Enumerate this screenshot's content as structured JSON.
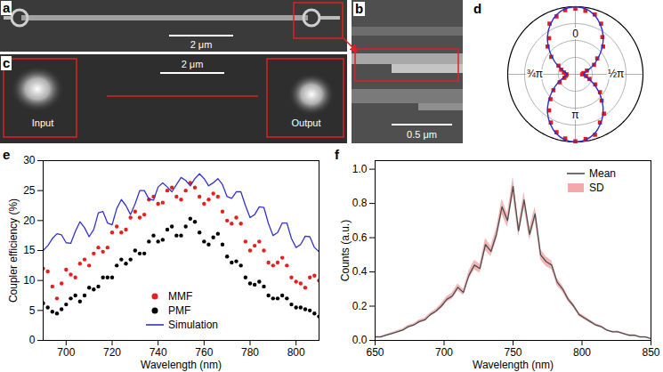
{
  "images": [
    {
      "panel": "a",
      "scale_bar": "2 μm"
    },
    {
      "panel": "b",
      "scale_bar": "0.5 μm"
    },
    {
      "panel": "c",
      "scale_bar": "2 μm",
      "labels": [
        "Input",
        "Output"
      ]
    }
  ],
  "chart_data": [
    {
      "panel": "d",
      "type": "polar",
      "grid": true,
      "tick_labels": "x",
      "x": [
        0,
        0.05,
        0.1,
        0.15,
        0.2,
        0.25,
        0.3,
        0.35,
        0.4,
        0.45,
        0.5,
        0.55,
        0.6,
        0.65,
        0.7,
        0.75,
        0.8,
        0.85,
        0.9,
        0.95,
        1,
        1.05,
        1.1,
        1.15,
        1.2,
        1.25,
        1.3,
        1.35,
        1.4,
        1.45,
        1.5,
        1.55,
        1.6,
        1.65,
        1.7,
        1.75,
        1.8,
        1.85,
        1.9,
        1.95
      ],
      "xlim": [
        0,
        2
      ],
      "xticks": [
        {
          "value": 0,
          "label": "0"
        },
        {
          "value": 0.5,
          "label": "½π"
        },
        {
          "value": 1,
          "label": "π"
        },
        {
          "value": 1.5,
          "label": "¾π"
        }
      ],
      "ylim": [
        0,
        1
      ],
      "yticks": [
        0.25,
        0.5,
        0.75
      ],
      "series": [
        {
          "type": "scatter",
          "marker": "square",
          "color": "#e41a1c",
          "values": [
            0.97,
            0.95,
            0.93,
            0.84,
            0.68,
            0.58,
            0.4,
            0.31,
            0.18,
            0.12,
            0.1,
            0.16,
            0.22,
            0.33,
            0.45,
            0.55,
            0.72,
            0.8,
            0.94,
            0.97,
            0.99,
            0.96,
            0.9,
            0.8,
            0.66,
            0.52,
            0.4,
            0.26,
            0.17,
            0.14,
            0.13,
            0.17,
            0.22,
            0.28,
            0.44,
            0.58,
            0.66,
            0.84,
            0.9,
            0.96
          ]
        },
        {
          "type": "line",
          "color": "#2b2bd9",
          "values": [
            1,
            0.98,
            0.92,
            0.82,
            0.7,
            0.56,
            0.42,
            0.3,
            0.2,
            0.14,
            0.12,
            0.14,
            0.2,
            0.3,
            0.42,
            0.56,
            0.7,
            0.82,
            0.92,
            0.98,
            1,
            0.98,
            0.92,
            0.82,
            0.7,
            0.56,
            0.42,
            0.3,
            0.2,
            0.14,
            0.12,
            0.14,
            0.2,
            0.3,
            0.42,
            0.56,
            0.7,
            0.82,
            0.92,
            0.98
          ]
        }
      ]
    },
    {
      "panel": "e",
      "type": "line",
      "legend": "lower center",
      "xlabel": "Wavelength (nm)",
      "ylabel": "Coupler efficiency (%)",
      "xlim": [
        690,
        810
      ],
      "xticks": [
        700,
        720,
        740,
        760,
        780,
        800
      ],
      "ylim": [
        0,
        30
      ],
      "yticks": [
        0,
        5,
        10,
        15,
        20,
        25,
        30
      ],
      "x": [
        690,
        692,
        694,
        696,
        698,
        700,
        702,
        704,
        706,
        708,
        710,
        712,
        714,
        716,
        718,
        720,
        722,
        724,
        726,
        728,
        730,
        732,
        734,
        736,
        738,
        740,
        742,
        744,
        746,
        748,
        750,
        752,
        754,
        756,
        758,
        760,
        762,
        764,
        766,
        768,
        770,
        772,
        774,
        776,
        778,
        780,
        782,
        784,
        786,
        788,
        790,
        792,
        794,
        796,
        798,
        800,
        802,
        804,
        806,
        808,
        810
      ],
      "series": [
        {
          "name": "MMF",
          "type": "scatter",
          "marker": "circle",
          "color": "#e8201c",
          "values": [
            12,
            11.5,
            9,
            7,
            9.5,
            11.8,
            11,
            10.5,
            12.8,
            13.5,
            12.5,
            14.5,
            15.5,
            14.8,
            15.5,
            18,
            19,
            18,
            18.5,
            20.5,
            21.5,
            20.5,
            21,
            23.5,
            24,
            22.8,
            23,
            25,
            25.5,
            24,
            23.5,
            25,
            26.3,
            25.5,
            24,
            22.8,
            23.5,
            24.5,
            24,
            21.5,
            20,
            19.5,
            20.5,
            19.5,
            16.5,
            15,
            15.8,
            16.5,
            15,
            13,
            12.5,
            13,
            13.8,
            12.5,
            10.5,
            9.8,
            9.5,
            8.8,
            10.5,
            10.8,
            10
          ]
        },
        {
          "name": "PMF",
          "type": "scatter",
          "marker": "circle",
          "color": "#000000",
          "values": [
            6.2,
            5.5,
            4.8,
            4.5,
            5.2,
            6,
            7,
            7.5,
            6.5,
            7.5,
            8.8,
            8.5,
            9,
            10.5,
            10.5,
            10.5,
            12.5,
            13.5,
            12.8,
            13.5,
            15,
            14.5,
            14.5,
            16.5,
            17.5,
            16.5,
            16.8,
            18.5,
            19,
            17.5,
            17.5,
            19,
            20.3,
            19.8,
            18,
            16.5,
            16,
            17.2,
            17.8,
            16,
            14,
            13,
            13.2,
            12.5,
            10.5,
            9.5,
            9.3,
            9.8,
            9,
            7.5,
            7,
            7,
            7.5,
            7,
            6,
            5.5,
            5.5,
            5.2,
            5,
            4.5,
            4
          ]
        },
        {
          "name": "Simulation",
          "type": "line",
          "line_style": "solid",
          "color": "#3333cc",
          "values": [
            15,
            15.8,
            17,
            17.8,
            17.6,
            16.3,
            16.2,
            18.2,
            19.8,
            18.8,
            17.3,
            18.5,
            21.3,
            21.5,
            19.6,
            19.3,
            22,
            23.5,
            22.5,
            21,
            22.8,
            25,
            25,
            23.6,
            23.4,
            25.6,
            26.3,
            25.6,
            24.8,
            26,
            27.2,
            26.7,
            25.8,
            27,
            27.8,
            27,
            25.8,
            26.3,
            27,
            26,
            24,
            23.7,
            24.8,
            24.8,
            22.5,
            20.5,
            21,
            22.3,
            22.2,
            19.5,
            17.5,
            18,
            19.6,
            19.6,
            17,
            15.5,
            16,
            17.4,
            17.3,
            15.5,
            14.8
          ]
        }
      ]
    },
    {
      "panel": "f",
      "type": "line",
      "legend": "upper right",
      "xlabel": "Wavelength (nm)",
      "ylabel": "Counts (a.u.)",
      "xlim": [
        650,
        850
      ],
      "xticks": [
        650,
        700,
        750,
        800,
        850
      ],
      "ylim": [
        0,
        1.05
      ],
      "yticks": [
        {
          "value": 0,
          "label": "0.0"
        },
        {
          "value": 0.2,
          "label": "0.2"
        },
        {
          "value": 0.4,
          "label": "0.4"
        },
        {
          "value": 0.6,
          "label": "0.6"
        },
        {
          "value": 0.8,
          "label": "0.8"
        },
        {
          "value": 1,
          "label": "1.0"
        }
      ],
      "x": [
        650,
        654,
        658,
        662,
        666,
        670,
        674,
        678,
        682,
        686,
        690,
        694,
        698,
        702,
        706,
        710,
        714,
        718,
        722,
        726,
        730,
        734,
        738,
        742,
        746,
        750,
        754,
        758,
        762,
        766,
        770,
        774,
        778,
        782,
        786,
        790,
        794,
        798,
        802,
        806,
        810,
        814,
        818,
        822,
        826,
        830,
        834,
        838,
        842,
        846,
        850
      ],
      "series": [
        {
          "name": "Mean",
          "type": "line",
          "line_style": "solid",
          "color": "#4d4d4d",
          "values": [
            0.02,
            0.02,
            0.03,
            0.04,
            0.05,
            0.06,
            0.08,
            0.09,
            0.11,
            0.12,
            0.15,
            0.17,
            0.2,
            0.24,
            0.26,
            0.31,
            0.28,
            0.38,
            0.44,
            0.42,
            0.56,
            0.52,
            0.62,
            0.78,
            0.7,
            0.9,
            0.64,
            0.82,
            0.62,
            0.74,
            0.5,
            0.46,
            0.44,
            0.34,
            0.3,
            0.24,
            0.2,
            0.15,
            0.13,
            0.11,
            0.09,
            0.08,
            0.06,
            0.05,
            0.05,
            0.04,
            0.03,
            0.03,
            0.02,
            0.02,
            0.01
          ]
        },
        {
          "name": "SD",
          "type": "area",
          "color": "#f2a9a9",
          "values": [
            0.005,
            0.005,
            0.005,
            0.006,
            0.006,
            0.007,
            0.008,
            0.008,
            0.009,
            0.01,
            0.01,
            0.012,
            0.014,
            0.016,
            0.018,
            0.02,
            0.018,
            0.024,
            0.028,
            0.026,
            0.035,
            0.03,
            0.035,
            0.045,
            0.04,
            0.055,
            0.035,
            0.045,
            0.035,
            0.04,
            0.03,
            0.028,
            0.025,
            0.02,
            0.018,
            0.015,
            0.012,
            0.01,
            0.01,
            0.008,
            0.007,
            0.006,
            0.005,
            0.005,
            0.005,
            0.004,
            0.004,
            0.004,
            0.003,
            0.003,
            0.003
          ]
        }
      ]
    }
  ]
}
